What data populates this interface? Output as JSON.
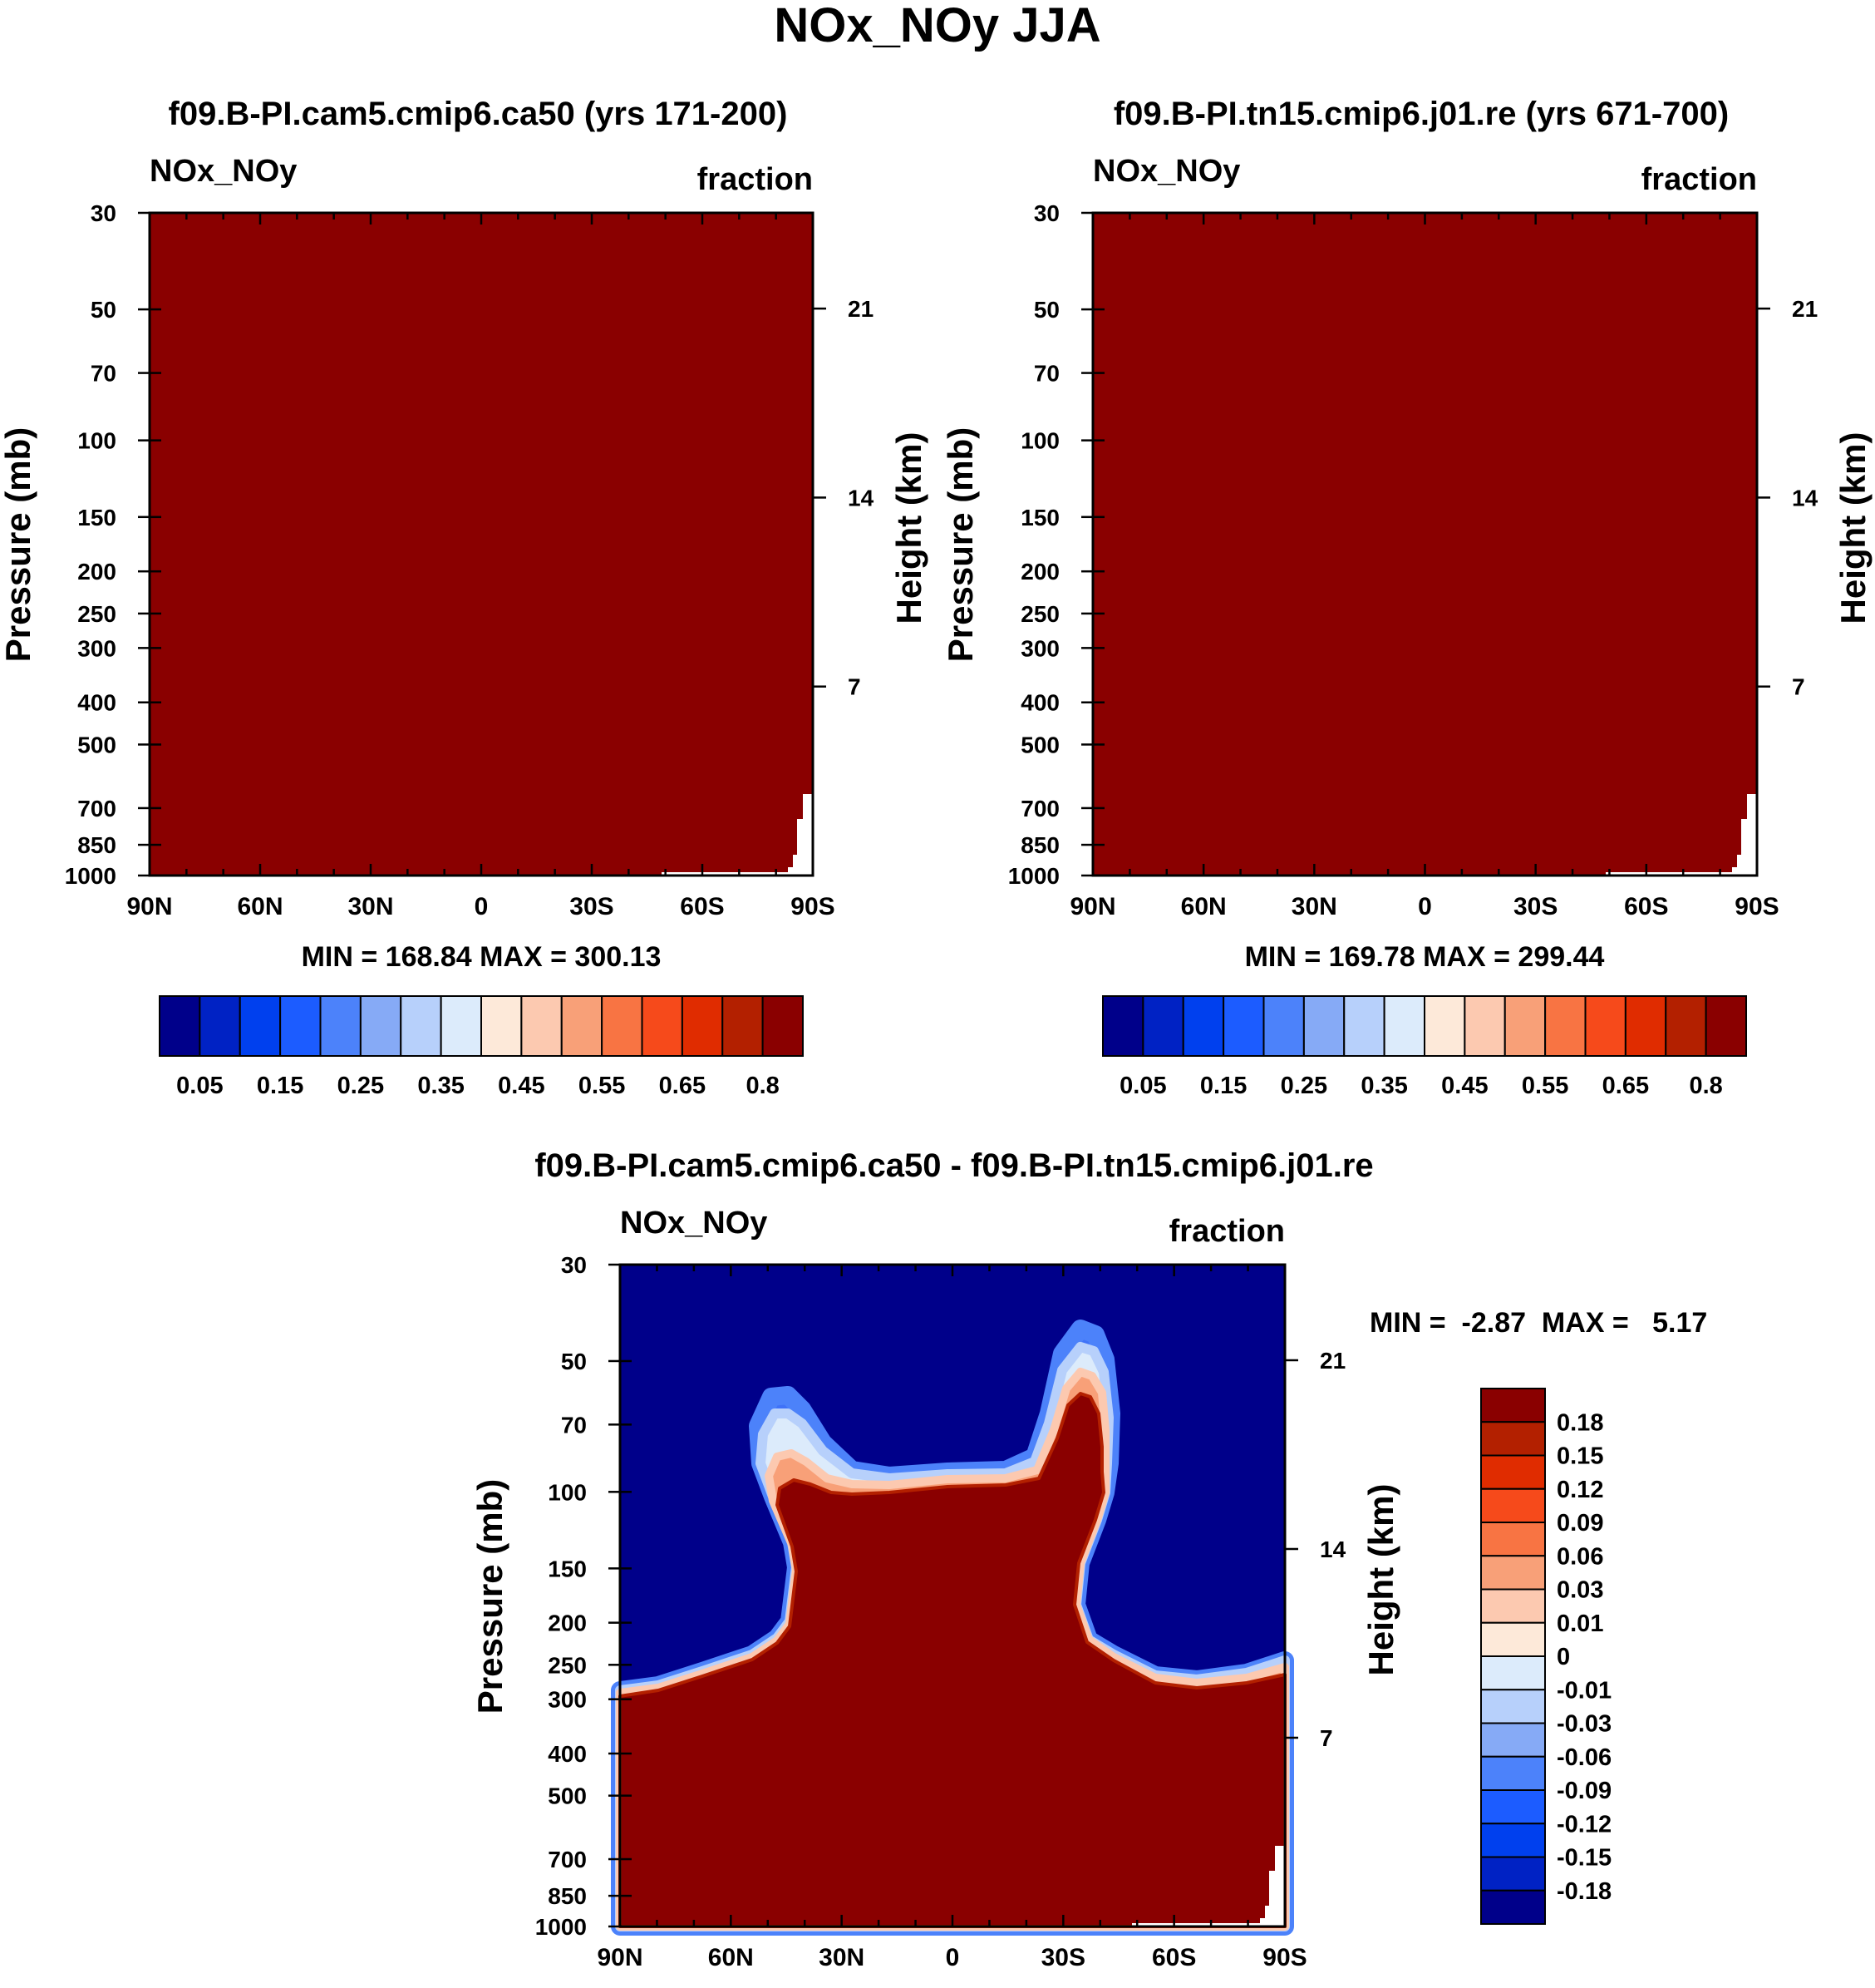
{
  "figure_title": "NOx_NOy JJA",
  "chart_data": [
    {
      "type": "contour",
      "title": "f09.B-PI.cam5.cmip6.ca50 (yrs 171-200)",
      "left_label": "NOx_NOy",
      "right_label": "fraction",
      "ylabel": "Pressure (mb)",
      "ylabel_right": "Height (km)",
      "x_ticks": [
        "90N",
        "60N",
        "30N",
        "0",
        "30S",
        "60S",
        "90S"
      ],
      "y_ticks": [
        "30",
        "50",
        "70",
        "100",
        "150",
        "200",
        "250",
        "300",
        "400",
        "500",
        "700",
        "850",
        "1000"
      ],
      "y_ticks_right": [
        "21",
        "14",
        "7"
      ],
      "stats": "MIN = 168.84  MAX = 300.13",
      "fill_value": "0.8+",
      "colorbar_labels": [
        "0.05",
        "0.15",
        "0.25",
        "0.35",
        "0.45",
        "0.55",
        "0.65",
        "0.8"
      ],
      "colorbar_orientation": "horizontal"
    },
    {
      "type": "contour",
      "title": "f09.B-PI.tn15.cmip6.j01.re (yrs 671-700)",
      "left_label": "NOx_NOy",
      "right_label": "fraction",
      "ylabel": "Pressure (mb)",
      "ylabel_right": "Height (km)",
      "x_ticks": [
        "90N",
        "60N",
        "30N",
        "0",
        "30S",
        "60S",
        "90S"
      ],
      "y_ticks": [
        "30",
        "50",
        "70",
        "100",
        "150",
        "200",
        "250",
        "300",
        "400",
        "500",
        "700",
        "850",
        "1000"
      ],
      "y_ticks_right": [
        "21",
        "14",
        "7"
      ],
      "stats": "MIN = 169.78  MAX = 299.44",
      "fill_value": "0.8+",
      "colorbar_labels": [
        "0.05",
        "0.15",
        "0.25",
        "0.35",
        "0.45",
        "0.55",
        "0.65",
        "0.8"
      ],
      "colorbar_orientation": "horizontal"
    },
    {
      "type": "contour",
      "title": "f09.B-PI.cam5.cmip6.ca50 - f09.B-PI.tn15.cmip6.j01.re",
      "left_label": "NOx_NOy",
      "right_label": "fraction",
      "ylabel": "Pressure (mb)",
      "ylabel_right": "Height (km)",
      "x_ticks": [
        "90N",
        "60N",
        "30N",
        "0",
        "30S",
        "60S",
        "90S"
      ],
      "y_ticks": [
        "30",
        "50",
        "70",
        "100",
        "150",
        "200",
        "250",
        "300",
        "400",
        "500",
        "700",
        "850",
        "1000"
      ],
      "y_ticks_right": [
        "21",
        "14",
        "7"
      ],
      "stats": "MIN =  -2.87  MAX =   5.17",
      "colorbar_labels": [
        "0.18",
        "0.15",
        "0.12",
        "0.09",
        "0.06",
        "0.03",
        "0.01",
        "0",
        "-0.01",
        "-0.03",
        "-0.06",
        "-0.09",
        "-0.12",
        "-0.15",
        "-0.18"
      ],
      "colorbar_orientation": "vertical",
      "upper_region": "below -0.18",
      "lower_region": "above 0.18"
    }
  ],
  "colors": {
    "palette": [
      "#00008a",
      "#0022c4",
      "#0040ee",
      "#1c5cff",
      "#4c82fa",
      "#86aaf6",
      "#b7d0fb",
      "#dcebfb",
      "#fde9d9",
      "#fcc9b0",
      "#f8a078",
      "#f87443",
      "#f64a1b",
      "#e02c00",
      "#b32000",
      "#8a0000"
    ],
    "high": "#8a0000",
    "low": "#00008a"
  }
}
